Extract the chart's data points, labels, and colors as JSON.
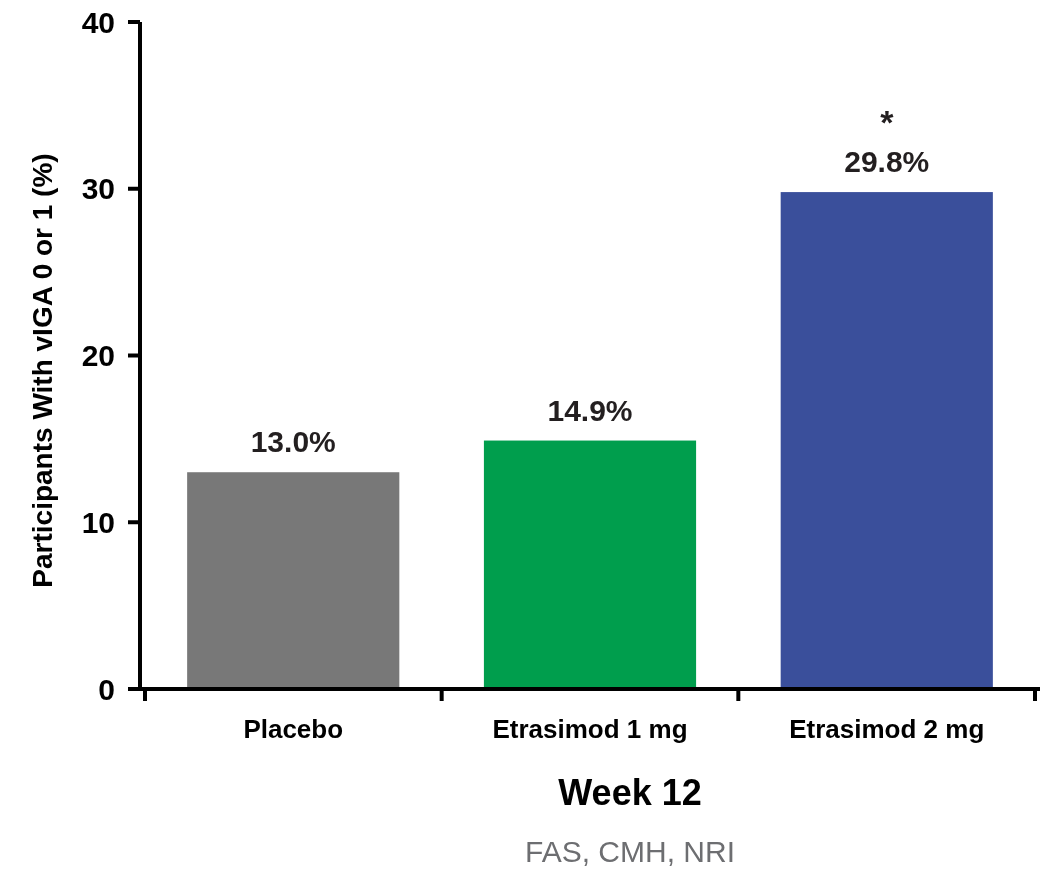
{
  "chart_data": {
    "type": "bar",
    "xlabel": "Week 12",
    "ylabel": "Participants With vIGA 0 or 1 (%)",
    "categories": [
      "Placebo",
      "Etrasimod 1 mg",
      "Etrasimod 2 mg"
    ],
    "values": [
      13.0,
      14.9,
      29.8
    ],
    "colors": [
      "#787878",
      "#009e4d",
      "#3a4f9b"
    ],
    "value_labels": [
      "13.0%",
      "14.9%",
      "29.8%"
    ],
    "ylim": [
      0,
      40
    ],
    "yticks": [
      0,
      10,
      20,
      30,
      40
    ],
    "grid": false,
    "annotations": [
      {
        "text": "*",
        "x": "Etrasimod 2 mg",
        "y": 29.8
      },
      "FAS, CMH, NRI"
    ]
  }
}
